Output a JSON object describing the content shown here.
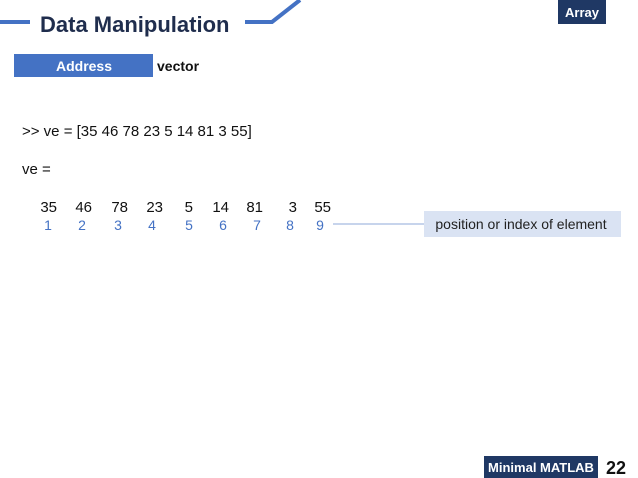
{
  "header": {
    "title": "Data Manipulation",
    "tag": "Array"
  },
  "subheader": {
    "label": "Address",
    "text": "vector"
  },
  "code": {
    "command": ">> ve = [35 46 78 23 5 14 81 3 55]",
    "output_name": "ve =",
    "values": [
      35,
      46,
      78,
      23,
      5,
      14,
      81,
      3,
      55
    ],
    "indices": [
      1,
      2,
      3,
      4,
      5,
      6,
      7,
      8,
      9
    ]
  },
  "callout": "position or index of element",
  "footer": {
    "label": "Minimal MATLAB",
    "page": "22"
  }
}
